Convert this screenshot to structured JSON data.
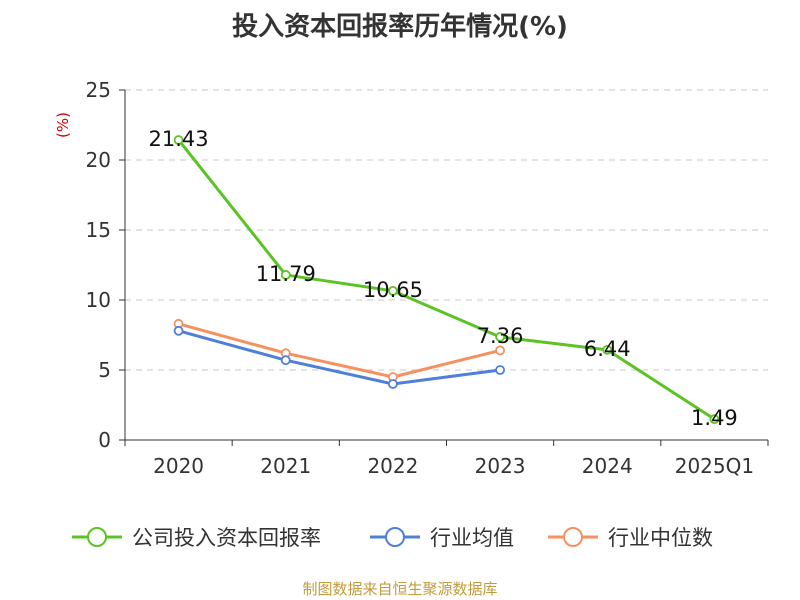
{
  "chart_data": {
    "type": "line",
    "title": "投入资本回报率历年情况(%)",
    "ylabel": "(%)",
    "categories": [
      "2020",
      "2021",
      "2022",
      "2023",
      "2024",
      "2025Q1"
    ],
    "ylim": [
      0,
      25
    ],
    "yticks": [
      0,
      5,
      10,
      15,
      20,
      25
    ],
    "grid": true,
    "legend_position": "bottom",
    "series": [
      {
        "name": "公司投入资本回报率",
        "color": "#5bc424",
        "values": [
          21.43,
          11.79,
          10.65,
          7.36,
          6.44,
          1.49
        ],
        "labels": [
          "21.43",
          "11.79",
          "10.65",
          "7.36",
          "6.44",
          "1.49"
        ]
      },
      {
        "name": "行业均值",
        "color": "#4f7fd9",
        "values": [
          7.8,
          5.7,
          4.0,
          5.0,
          null,
          null
        ]
      },
      {
        "name": "行业中位数",
        "color": "#f59160",
        "values": [
          8.3,
          6.2,
          4.5,
          6.4,
          null,
          null
        ]
      }
    ]
  },
  "source": "制图数据来自恒生聚源数据库"
}
